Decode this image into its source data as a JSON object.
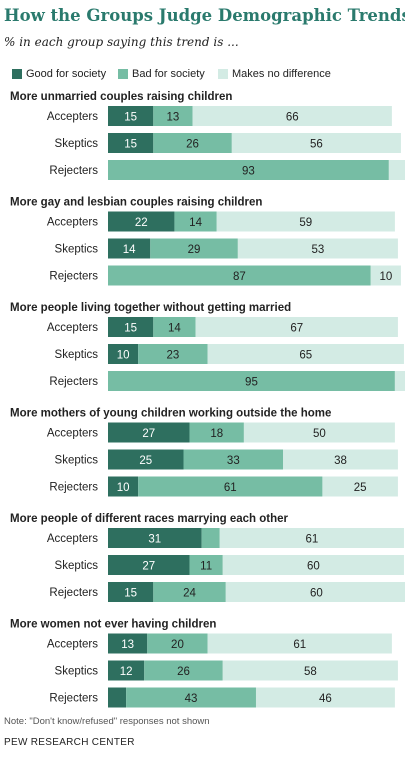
{
  "title": "How the Groups Judge Demographic Trends",
  "subtitle": "% in each group saying this trend is ...",
  "colors": {
    "good": "#2e6f5f",
    "bad": "#76bda4",
    "none": "#d3ebe4",
    "title": "#2a7a6d"
  },
  "legend": [
    {
      "label": "Good for society",
      "key": "good"
    },
    {
      "label": "Bad for society",
      "key": "bad"
    },
    {
      "label": "Makes no difference",
      "key": "none"
    }
  ],
  "chart_data": {
    "type": "bar",
    "orientation": "horizontal",
    "stacked": true,
    "xlim": [
      0,
      100
    ],
    "series_names": [
      "Good for society",
      "Bad for society",
      "Makes no difference"
    ],
    "groups": [
      {
        "title": "More unmarried couples raising children",
        "rows": [
          {
            "label": "Accepters",
            "values": [
              15,
              13,
              66
            ]
          },
          {
            "label": "Skeptics",
            "values": [
              15,
              26,
              56
            ]
          },
          {
            "label": "Rejecters",
            "values": [
              0,
              93,
              6
            ]
          }
        ]
      },
      {
        "title": "More gay and lesbian couples raising children",
        "rows": [
          {
            "label": "Accepters",
            "values": [
              22,
              14,
              59
            ]
          },
          {
            "label": "Skeptics",
            "values": [
              14,
              29,
              53
            ]
          },
          {
            "label": "Rejecters",
            "values": [
              0,
              87,
              10
            ]
          }
        ]
      },
      {
        "title": "More people living together without getting married",
        "rows": [
          {
            "label": "Accepters",
            "values": [
              15,
              14,
              67
            ]
          },
          {
            "label": "Skeptics",
            "values": [
              10,
              23,
              65
            ]
          },
          {
            "label": "Rejecters",
            "values": [
              0,
              95,
              4
            ]
          }
        ]
      },
      {
        "title": "More mothers of young children working outside the home",
        "rows": [
          {
            "label": "Accepters",
            "values": [
              27,
              18,
              50
            ]
          },
          {
            "label": "Skeptics",
            "values": [
              25,
              33,
              38
            ]
          },
          {
            "label": "Rejecters",
            "values": [
              10,
              61,
              25
            ]
          }
        ]
      },
      {
        "title": "More people of different races marrying each other",
        "rows": [
          {
            "label": "Accepters",
            "values": [
              31,
              6,
              61
            ]
          },
          {
            "label": "Skeptics",
            "values": [
              27,
              11,
              60
            ]
          },
          {
            "label": "Rejecters",
            "values": [
              15,
              24,
              60
            ]
          }
        ]
      },
      {
        "title": "More women not ever having children",
        "rows": [
          {
            "label": "Accepters",
            "values": [
              13,
              20,
              61
            ]
          },
          {
            "label": "Skeptics",
            "values": [
              12,
              26,
              58
            ]
          },
          {
            "label": "Rejecters",
            "values": [
              6,
              43,
              46
            ]
          }
        ]
      }
    ]
  },
  "note": "Note: \"Don't know/refused\" responses not shown",
  "source": "PEW RESEARCH CENTER"
}
